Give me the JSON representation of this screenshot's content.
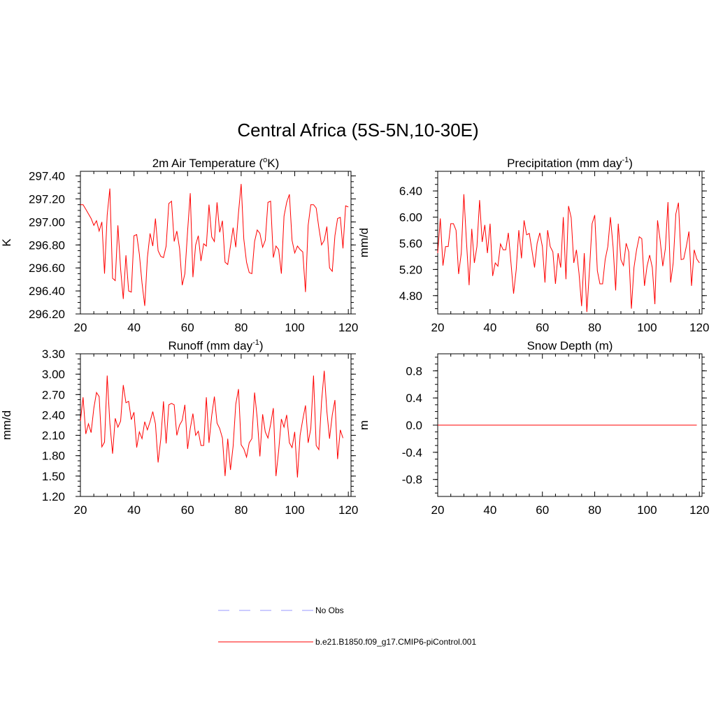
{
  "figure": {
    "title": "Central Africa (5S-5N,10-30E)"
  },
  "colors": {
    "model_line": "#ff0000",
    "obs_line": "#9999ff",
    "axis": "#000000"
  },
  "legend": {
    "entries": [
      {
        "label": "No Obs",
        "style": "dashed",
        "color": "#9999ff"
      },
      {
        "label": "b.e21.B1850.f09_g17.CMIP6-piControl.001",
        "style": "solid",
        "color": "#ff0000"
      }
    ]
  },
  "chart_data": [
    {
      "type": "line",
      "title": "2m Air Temperature (°K)",
      "title_parts": [
        "2m Air Temperature (",
        "o",
        "K)"
      ],
      "ylabel": "K",
      "xlabel": "",
      "xlim": [
        20,
        121
      ],
      "ylim": [
        296.2,
        297.44
      ],
      "xticks": [
        20,
        40,
        60,
        80,
        100,
        120
      ],
      "yticks": [
        296.2,
        296.4,
        296.6,
        296.8,
        297.0,
        297.2,
        297.4
      ],
      "ytick_labels": [
        "296.20",
        "296.40",
        "296.60",
        "296.80",
        "297.00",
        "297.20",
        "297.40"
      ],
      "x_start": 20,
      "series": [
        {
          "name": "b.e21.B1850.f09_g17.CMIP6-piControl.001",
          "values": [
            297.15,
            297.15,
            297.11,
            297.07,
            297.03,
            296.97,
            297.01,
            296.92,
            297.0,
            296.55,
            297.06,
            297.29,
            296.51,
            296.49,
            296.97,
            296.59,
            296.33,
            296.71,
            296.4,
            296.39,
            296.88,
            296.89,
            296.72,
            296.47,
            296.27,
            296.69,
            296.9,
            296.79,
            297.03,
            296.75,
            296.7,
            296.69,
            296.79,
            297.16,
            297.18,
            296.83,
            296.92,
            296.77,
            296.45,
            296.55,
            296.92,
            297.25,
            296.52,
            296.8,
            296.88,
            296.66,
            296.81,
            296.79,
            297.15,
            296.87,
            296.83,
            297.17,
            296.91,
            297.01,
            296.65,
            296.63,
            296.79,
            296.95,
            296.78,
            297.08,
            297.33,
            296.85,
            296.65,
            296.56,
            296.55,
            296.83,
            296.93,
            296.9,
            296.78,
            296.84,
            297.17,
            297.18,
            296.69,
            296.79,
            296.76,
            296.55,
            297.05,
            297.17,
            297.24,
            296.84,
            296.73,
            296.79,
            296.76,
            296.74,
            296.39,
            296.97,
            297.15,
            297.15,
            297.12,
            296.95,
            296.8,
            296.84,
            296.96,
            296.6,
            296.57,
            296.88,
            297.03,
            297.04,
            296.77,
            297.14,
            297.13
          ]
        }
      ]
    },
    {
      "type": "line",
      "title": "Precipitation (mm day-1)",
      "title_parts": [
        "Precipitation (mm day",
        "-1",
        ")"
      ],
      "ylabel": "mm/d",
      "xlabel": "",
      "xlim": [
        20,
        121
      ],
      "ylim": [
        4.52,
        6.7
      ],
      "xticks": [
        20,
        40,
        60,
        80,
        100,
        120
      ],
      "yticks": [
        4.8,
        5.2,
        5.6,
        6.0,
        6.4
      ],
      "ytick_labels": [
        "4.80",
        "5.20",
        "5.60",
        "6.00",
        "6.40"
      ],
      "x_start": 20,
      "series": [
        {
          "name": "b.e21.B1850.f09_g17.CMIP6-piControl.001",
          "values": [
            5.45,
            5.98,
            5.26,
            5.55,
            5.55,
            5.9,
            5.9,
            5.8,
            5.13,
            5.45,
            6.35,
            5.61,
            4.96,
            5.82,
            5.3,
            5.55,
            6.26,
            5.62,
            5.88,
            5.45,
            5.9,
            5.1,
            5.3,
            5.25,
            5.59,
            5.5,
            5.5,
            5.76,
            5.3,
            4.83,
            5.2,
            5.8,
            5.37,
            5.95,
            5.73,
            5.75,
            5.5,
            5.23,
            5.6,
            5.76,
            5.55,
            5.0,
            5.8,
            5.55,
            5.47,
            4.98,
            5.45,
            5.23,
            6.0,
            5.05,
            6.17,
            5.99,
            5.3,
            5.5,
            5.14,
            4.64,
            5.45,
            4.55,
            5.2,
            5.9,
            6.03,
            5.18,
            4.98,
            4.98,
            5.35,
            5.55,
            6.0,
            5.55,
            4.88,
            5.9,
            5.35,
            5.26,
            5.6,
            5.47,
            4.6,
            5.23,
            5.5,
            5.7,
            5.67,
            4.95,
            5.25,
            5.42,
            5.23,
            4.67,
            5.95,
            5.65,
            5.25,
            5.52,
            6.23,
            5.0,
            5.3,
            6.05,
            6.22,
            5.35,
            5.36,
            5.55,
            5.78,
            4.95,
            5.5,
            5.36,
            5.3
          ]
        }
      ]
    },
    {
      "type": "line",
      "title": "Runoff (mm day-1)",
      "title_parts": [
        "Runoff (mm day",
        "-1",
        ")"
      ],
      "ylabel": "mm/d",
      "xlabel": "",
      "xlim": [
        20,
        121
      ],
      "ylim": [
        1.2,
        3.3
      ],
      "xticks": [
        20,
        40,
        60,
        80,
        100,
        120
      ],
      "yticks": [
        1.2,
        1.5,
        1.8,
        2.1,
        2.4,
        2.7,
        3.0,
        3.3
      ],
      "ytick_labels": [
        "1.20",
        "1.50",
        "1.80",
        "2.10",
        "2.40",
        "2.70",
        "3.00",
        "3.30"
      ],
      "x_start": 20,
      "series": [
        {
          "name": "b.e21.B1850.f09_g17.CMIP6-piControl.001",
          "values": [
            2.31,
            2.66,
            2.12,
            2.27,
            2.14,
            2.5,
            2.73,
            2.67,
            1.93,
            2.0,
            2.98,
            2.28,
            1.83,
            2.35,
            2.22,
            2.31,
            2.84,
            2.58,
            2.6,
            2.33,
            2.44,
            1.92,
            2.15,
            2.05,
            2.3,
            2.18,
            2.3,
            2.45,
            2.27,
            1.7,
            2.05,
            2.6,
            1.98,
            2.55,
            2.57,
            2.55,
            2.1,
            2.25,
            2.32,
            2.55,
            1.9,
            2.2,
            2.42,
            2.1,
            2.16,
            1.95,
            1.95,
            2.66,
            1.99,
            2.39,
            2.67,
            2.28,
            2.2,
            2.06,
            1.5,
            2.05,
            1.59,
            1.94,
            2.56,
            2.78,
            1.96,
            1.9,
            1.78,
            1.99,
            2.05,
            2.73,
            2.35,
            1.79,
            2.41,
            2.15,
            2.06,
            2.26,
            2.5,
            1.5,
            1.87,
            2.34,
            2.22,
            2.4,
            1.99,
            1.92,
            2.15,
            1.48,
            2.1,
            2.33,
            2.54,
            1.99,
            2.2,
            2.98,
            1.95,
            1.89,
            2.6,
            3.05,
            2.45,
            2.05,
            2.4,
            2.62,
            1.75,
            2.18,
            2.06
          ]
        }
      ]
    },
    {
      "type": "line",
      "title": "Snow Depth (m)",
      "title_parts": [
        "Snow Depth (m)"
      ],
      "ylabel": "m",
      "xlabel": "",
      "xlim": [
        20,
        121
      ],
      "ylim": [
        -1.05,
        1.05
      ],
      "xticks": [
        20,
        40,
        60,
        80,
        100,
        120
      ],
      "yticks": [
        -0.8,
        -0.4,
        0.0,
        0.4,
        0.8
      ],
      "ytick_labels": [
        "-0.8",
        "-0.4",
        "0.0",
        "0.4",
        "0.8"
      ],
      "x_start": 20,
      "series": [
        {
          "name": "b.e21.B1850.f09_g17.CMIP6-piControl.001",
          "values": [
            0,
            0,
            0,
            0,
            0,
            0,
            0,
            0,
            0,
            0,
            0,
            0,
            0,
            0,
            0,
            0,
            0,
            0,
            0,
            0,
            0,
            0,
            0,
            0,
            0,
            0,
            0,
            0,
            0,
            0,
            0,
            0,
            0,
            0,
            0,
            0,
            0,
            0,
            0,
            0,
            0,
            0,
            0,
            0,
            0,
            0,
            0,
            0,
            0,
            0,
            0,
            0,
            0,
            0,
            0,
            0,
            0,
            0,
            0,
            0,
            0,
            0,
            0,
            0,
            0,
            0,
            0,
            0,
            0,
            0,
            0,
            0,
            0,
            0,
            0,
            0,
            0,
            0,
            0,
            0,
            0,
            0,
            0,
            0,
            0,
            0,
            0,
            0,
            0,
            0,
            0,
            0,
            0,
            0,
            0,
            0,
            0,
            0,
            0,
            0
          ]
        }
      ]
    }
  ]
}
